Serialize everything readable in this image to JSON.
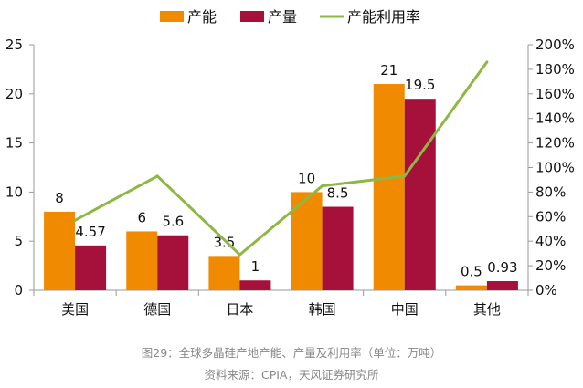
{
  "chart_data": {
    "type": "bar",
    "categories": [
      "美国",
      "德国",
      "日本",
      "韩国",
      "中国",
      "其他"
    ],
    "series": [
      {
        "name": "产能",
        "values": [
          8,
          6,
          3.5,
          10,
          21,
          0.5
        ],
        "labels": [
          "8",
          "6",
          "3.5",
          "10",
          "21",
          "0.5"
        ],
        "color": "#F08A00",
        "axis": "left",
        "kind": "bar"
      },
      {
        "name": "产量",
        "values": [
          4.57,
          5.6,
          1,
          8.5,
          19.5,
          0.93
        ],
        "labels": [
          "4.57",
          "5.6",
          "1",
          "8.5",
          "19.5",
          "0.93"
        ],
        "color": "#A5113A",
        "axis": "left",
        "kind": "bar"
      },
      {
        "name": "产能利用率",
        "values": [
          57,
          93,
          29,
          85,
          93,
          186
        ],
        "color": "#8DB843",
        "axis": "right",
        "kind": "line",
        "unit": "%"
      }
    ],
    "ylim": [
      0,
      25
    ],
    "yticks": [
      "0",
      "5",
      "10",
      "15",
      "20",
      "25"
    ],
    "y2lim": [
      0,
      200
    ],
    "y2ticks": [
      "0%",
      "20%",
      "40%",
      "60%",
      "80%",
      "100%",
      "120%",
      "140%",
      "160%",
      "180%",
      "200%"
    ],
    "legend_position": "top-center",
    "grid": false
  },
  "caption": "图29：全球多晶硅产地产能、产量及利用率（单位：万吨）",
  "source": "资料来源：CPIA，天风证券研究所"
}
